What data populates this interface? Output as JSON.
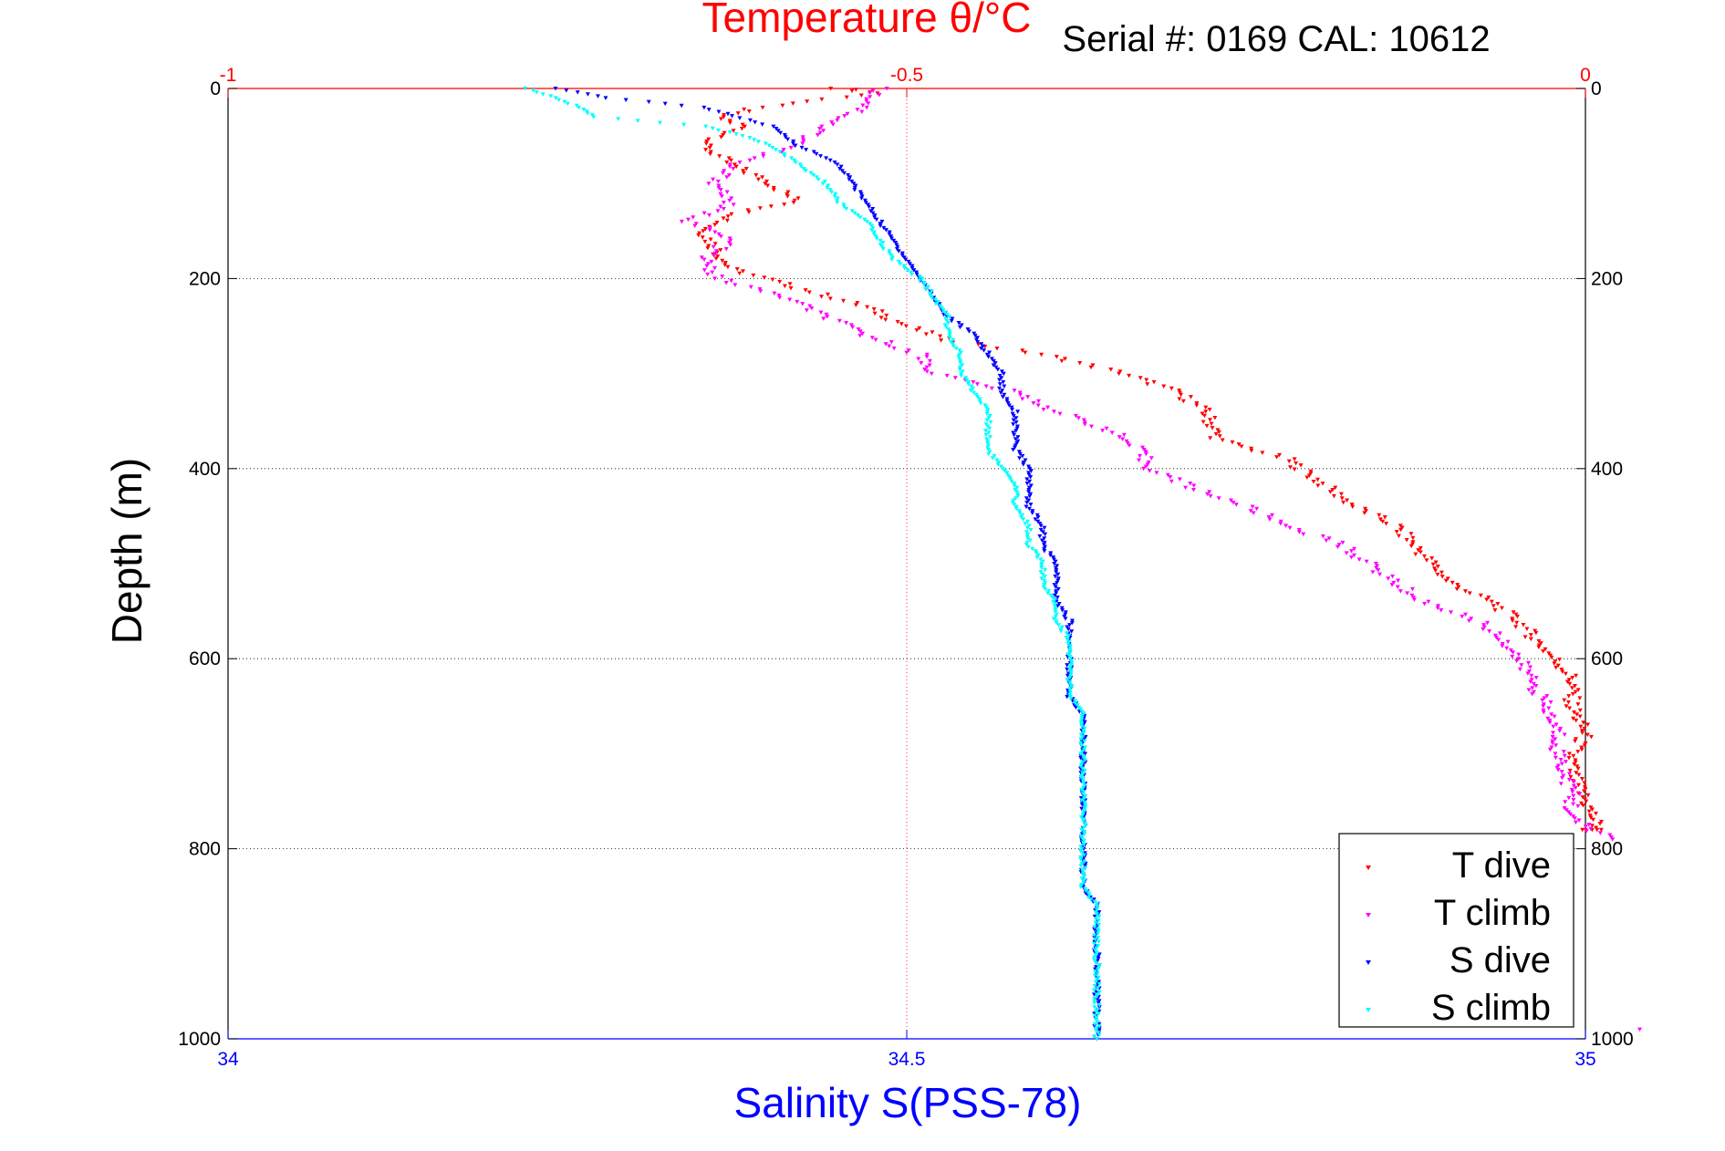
{
  "chart_data": {
    "type": "scatter",
    "serial": "Serial #: 0169 CAL: 10612",
    "top_axis": {
      "label": "Temperature θ/°C",
      "range": [
        -1,
        0
      ],
      "ticks": [
        "-1",
        "-0.5",
        "0"
      ],
      "color": "#ff0000"
    },
    "bottom_axis": {
      "label": "Salinity S(PSS-78)",
      "range": [
        34,
        35
      ],
      "ticks": [
        "34",
        "34.5",
        "35"
      ],
      "color": "#0000ff"
    },
    "y_axis": {
      "label": "Depth (m)",
      "range": [
        0,
        1000
      ],
      "reversed": true,
      "ticks": [
        "0",
        "200",
        "400",
        "600",
        "800",
        "1000"
      ]
    },
    "grid": true,
    "legend_position": "bottom-right",
    "series": [
      {
        "name": "T dive",
        "axis": "top",
        "color": "#ff0000",
        "points": [
          [
            -0.55,
            0
          ],
          [
            -0.52,
            5
          ],
          [
            -0.61,
            20
          ],
          [
            -0.64,
            30
          ],
          [
            -0.62,
            40
          ],
          [
            -0.65,
            60
          ],
          [
            -0.63,
            80
          ],
          [
            -0.6,
            100
          ],
          [
            -0.58,
            120
          ],
          [
            -0.62,
            130
          ],
          [
            -0.65,
            150
          ],
          [
            -0.64,
            170
          ],
          [
            -0.63,
            190
          ],
          [
            -0.58,
            210
          ],
          [
            -0.53,
            230
          ],
          [
            -0.5,
            250
          ],
          [
            -0.47,
            265
          ],
          [
            -0.4,
            280
          ],
          [
            -0.34,
            300
          ],
          [
            -0.3,
            320
          ],
          [
            -0.28,
            340
          ],
          [
            -0.27,
            370
          ],
          [
            -0.22,
            390
          ],
          [
            -0.19,
            420
          ],
          [
            -0.17,
            440
          ],
          [
            -0.14,
            460
          ],
          [
            -0.12,
            490
          ],
          [
            -0.1,
            520
          ],
          [
            -0.07,
            540
          ],
          [
            -0.05,
            560
          ],
          [
            -0.03,
            590
          ],
          [
            -0.01,
            620
          ],
          [
            -0.01,
            650
          ],
          [
            0.0,
            680
          ],
          [
            -0.01,
            700
          ],
          [
            -0.01,
            720
          ],
          [
            0.0,
            750
          ],
          [
            0.01,
            780
          ],
          [
            0.0,
            780
          ]
        ]
      },
      {
        "name": "T climb",
        "axis": "top",
        "color": "#ff00ff",
        "points": [
          [
            -0.52,
            0
          ],
          [
            -0.53,
            20
          ],
          [
            -0.56,
            40
          ],
          [
            -0.58,
            60
          ],
          [
            -0.63,
            80
          ],
          [
            -0.64,
            100
          ],
          [
            -0.63,
            120
          ],
          [
            -0.66,
            140
          ],
          [
            -0.63,
            160
          ],
          [
            -0.65,
            180
          ],
          [
            -0.64,
            200
          ],
          [
            -0.59,
            220
          ],
          [
            -0.56,
            240
          ],
          [
            -0.53,
            260
          ],
          [
            -0.49,
            280
          ],
          [
            -0.48,
            300
          ],
          [
            -0.42,
            320
          ],
          [
            -0.39,
            340
          ],
          [
            -0.35,
            360
          ],
          [
            -0.33,
            380
          ],
          [
            -0.32,
            400
          ],
          [
            -0.29,
            420
          ],
          [
            -0.25,
            440
          ],
          [
            -0.22,
            460
          ],
          [
            -0.18,
            480
          ],
          [
            -0.16,
            500
          ],
          [
            -0.14,
            520
          ],
          [
            -0.12,
            540
          ],
          [
            -0.08,
            560
          ],
          [
            -0.06,
            580
          ],
          [
            -0.05,
            600
          ],
          [
            -0.04,
            620
          ],
          [
            -0.03,
            650
          ],
          [
            -0.02,
            680
          ],
          [
            -0.02,
            700
          ],
          [
            -0.01,
            740
          ],
          [
            -0.01,
            770
          ],
          [
            0.02,
            790
          ]
        ]
      },
      {
        "name": "S dive",
        "axis": "bottom",
        "color": "#0000ff",
        "points": [
          [
            34.24,
            0
          ],
          [
            34.28,
            10
          ],
          [
            34.35,
            20
          ],
          [
            34.4,
            40
          ],
          [
            34.42,
            60
          ],
          [
            34.45,
            80
          ],
          [
            34.46,
            100
          ],
          [
            34.47,
            120
          ],
          [
            34.48,
            140
          ],
          [
            34.49,
            160
          ],
          [
            34.5,
            180
          ],
          [
            34.51,
            200
          ],
          [
            34.52,
            220
          ],
          [
            34.53,
            240
          ],
          [
            34.55,
            260
          ],
          [
            34.56,
            280
          ],
          [
            34.57,
            300
          ],
          [
            34.57,
            320
          ],
          [
            34.58,
            340
          ],
          [
            34.58,
            360
          ],
          [
            34.58,
            380
          ],
          [
            34.59,
            400
          ],
          [
            34.59,
            420
          ],
          [
            34.59,
            440
          ],
          [
            34.6,
            460
          ],
          [
            34.6,
            480
          ],
          [
            34.61,
            500
          ],
          [
            34.61,
            520
          ],
          [
            34.61,
            540
          ],
          [
            34.62,
            560
          ],
          [
            34.62,
            580
          ],
          [
            34.62,
            600
          ],
          [
            34.62,
            620
          ],
          [
            34.62,
            640
          ],
          [
            34.63,
            660
          ],
          [
            34.63,
            680
          ],
          [
            34.63,
            700
          ],
          [
            34.63,
            720
          ],
          [
            34.63,
            740
          ],
          [
            34.63,
            760
          ],
          [
            34.63,
            780
          ],
          [
            34.63,
            800
          ],
          [
            34.63,
            820
          ],
          [
            34.63,
            840
          ],
          [
            34.64,
            860
          ],
          [
            34.64,
            880
          ],
          [
            34.64,
            900
          ],
          [
            34.64,
            920
          ],
          [
            34.64,
            940
          ],
          [
            34.64,
            960
          ],
          [
            34.64,
            980
          ],
          [
            34.64,
            1000
          ]
        ]
      },
      {
        "name": "S climb",
        "axis": "bottom",
        "color": "#00ffff",
        "points": [
          [
            34.22,
            0
          ],
          [
            34.24,
            10
          ],
          [
            34.26,
            20
          ],
          [
            34.27,
            30
          ],
          [
            34.35,
            40
          ],
          [
            34.38,
            50
          ],
          [
            34.4,
            60
          ],
          [
            34.42,
            80
          ],
          [
            34.44,
            100
          ],
          [
            34.45,
            120
          ],
          [
            34.47,
            140
          ],
          [
            34.48,
            160
          ],
          [
            34.49,
            180
          ],
          [
            34.51,
            200
          ],
          [
            34.52,
            220
          ],
          [
            34.53,
            240
          ],
          [
            34.53,
            260
          ],
          [
            34.54,
            280
          ],
          [
            34.54,
            300
          ],
          [
            34.55,
            320
          ],
          [
            34.56,
            340
          ],
          [
            34.56,
            360
          ],
          [
            34.56,
            380
          ],
          [
            34.57,
            400
          ],
          [
            34.58,
            420
          ],
          [
            34.58,
            440
          ],
          [
            34.59,
            460
          ],
          [
            34.59,
            480
          ],
          [
            34.6,
            500
          ],
          [
            34.6,
            520
          ],
          [
            34.61,
            540
          ],
          [
            34.61,
            560
          ],
          [
            34.62,
            580
          ],
          [
            34.62,
            600
          ],
          [
            34.62,
            620
          ],
          [
            34.62,
            640
          ],
          [
            34.63,
            660
          ],
          [
            34.63,
            680
          ],
          [
            34.63,
            700
          ],
          [
            34.63,
            720
          ],
          [
            34.63,
            740
          ],
          [
            34.63,
            760
          ],
          [
            34.63,
            780
          ],
          [
            34.63,
            800
          ],
          [
            34.63,
            820
          ],
          [
            34.63,
            840
          ],
          [
            34.64,
            860
          ],
          [
            34.64,
            880
          ],
          [
            34.64,
            900
          ],
          [
            34.64,
            920
          ],
          [
            34.64,
            940
          ],
          [
            34.64,
            960
          ],
          [
            34.64,
            980
          ],
          [
            34.64,
            1000
          ]
        ]
      }
    ],
    "extra_points": [
      {
        "series": "T climb",
        "x": 0.04,
        "y": 990
      }
    ]
  }
}
